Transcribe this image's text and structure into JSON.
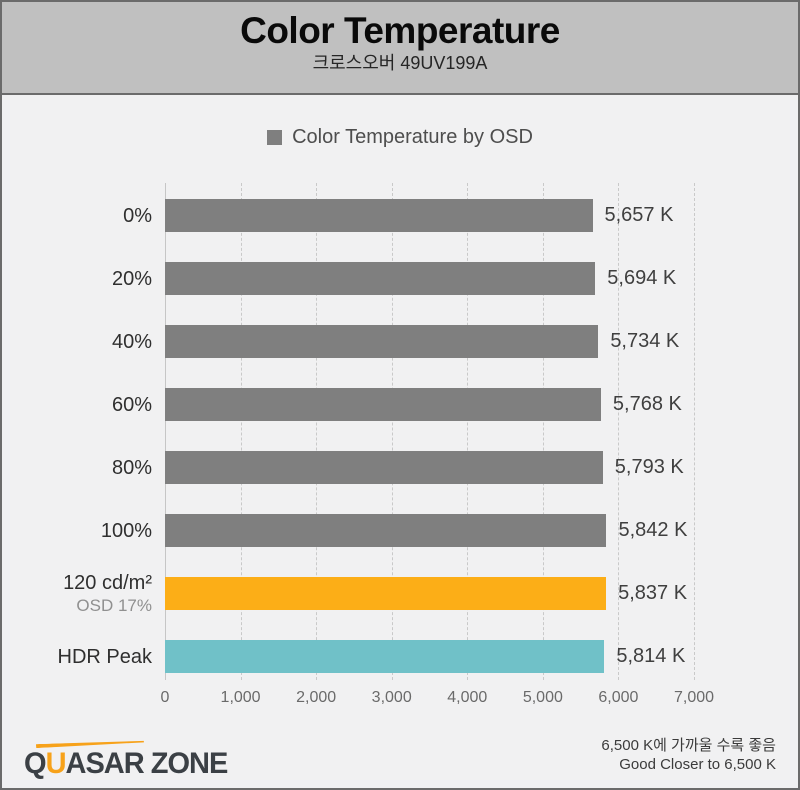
{
  "header": {
    "title": "Color Temperature",
    "subtitle": "크로스오버 49UV199A"
  },
  "legend": {
    "label": "Color Temperature by OSD",
    "swatch_color": "#7f7f7f"
  },
  "chart_data": {
    "type": "bar",
    "orientation": "horizontal",
    "title": "Color Temperature by OSD",
    "categories": [
      "0%",
      "20%",
      "40%",
      "60%",
      "80%",
      "100%",
      "120 cd/m²",
      "HDR Peak"
    ],
    "category_sublabels": [
      "",
      "",
      "",
      "",
      "",
      "",
      "OSD 17%",
      ""
    ],
    "values": [
      5657,
      5694,
      5734,
      5768,
      5793,
      5842,
      5837,
      5814
    ],
    "value_labels": [
      "5,657 K",
      "5,694 K",
      "5,734 K",
      "5,768 K",
      "5,793 K",
      "5,842 K",
      "5,837 K",
      "5,814 K"
    ],
    "bar_colors": [
      "#7f7f7f",
      "#7f7f7f",
      "#7f7f7f",
      "#7f7f7f",
      "#7f7f7f",
      "#7f7f7f",
      "#fcae17",
      "#70c1c8"
    ],
    "xlim": [
      0,
      7000
    ],
    "xticks": [
      0,
      1000,
      2000,
      3000,
      4000,
      5000,
      6000,
      7000
    ],
    "xtick_labels": [
      "0",
      "1,000",
      "2,000",
      "3,000",
      "4,000",
      "5,000",
      "6,000",
      "7,000"
    ],
    "grid": "vertical-dashed",
    "legend_position": "top-center"
  },
  "footer": {
    "logo": {
      "part_q": "Q",
      "part_u": "U",
      "part_rest": "ASAR ZONE"
    },
    "note_ko": "6,500 K에 가까울 수록 좋음",
    "note_en": "Good Closer to 6,500 K"
  },
  "colors": {
    "header_bg": "#c0c0c0",
    "page_bg": "#f1f1f2",
    "border": "#6b6b6b",
    "bar_gray": "#7f7f7f",
    "bar_orange": "#fcae17",
    "bar_teal": "#70c1c8",
    "logo_orange": "#f7a21a",
    "logo_dark": "#3b4045"
  }
}
